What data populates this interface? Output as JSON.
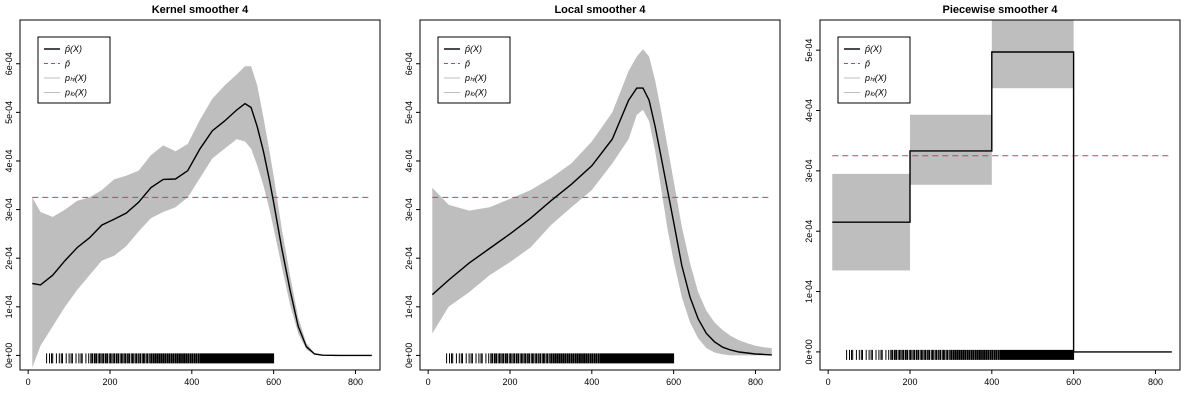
{
  "chart_data": [
    {
      "type": "line",
      "title": "Kernel smoother 4",
      "xlim": [
        -20,
        860
      ],
      "ylim": [
        -3e-05,
        0.00069
      ],
      "xticks": [
        0,
        200,
        400,
        600,
        800
      ],
      "yticks": [
        0,
        0.0001,
        0.0002,
        0.0003,
        0.0004,
        0.0005,
        0.0006
      ],
      "ytick_labels": [
        "0e+00",
        "1e-04",
        "2e-04",
        "3e-04",
        "4e-04",
        "5e-04",
        "6e-04"
      ],
      "legend": [
        "p̂(X)",
        "p̄",
        "pₕᵢ(X)",
        "pₗₒ(X)"
      ],
      "legend_position": "top-left",
      "pbar": 0.000325,
      "x": [
        10,
        30,
        60,
        90,
        120,
        150,
        180,
        210,
        240,
        270,
        300,
        330,
        360,
        390,
        420,
        450,
        480,
        510,
        530,
        545,
        560,
        575,
        590,
        600,
        620,
        640,
        660,
        680,
        700,
        720,
        760,
        800,
        840
      ],
      "fit": [
        0.000148,
        0.000145,
        0.000165,
        0.000195,
        0.000222,
        0.000242,
        0.000268,
        0.00028,
        0.000293,
        0.000315,
        0.000345,
        0.000362,
        0.000363,
        0.00038,
        0.000425,
        0.000462,
        0.000482,
        0.000505,
        0.000518,
        0.00051,
        0.00047,
        0.00042,
        0.00036,
        0.000315,
        0.00022,
        0.000135,
        6e-05,
        1.8e-05,
        3e-06,
        5e-07,
        0,
        0,
        0
      ],
      "upper": [
        0.000325,
        0.000295,
        0.000285,
        0.0003,
        0.000318,
        0.000325,
        0.00034,
        0.000362,
        0.00037,
        0.00038,
        0.000412,
        0.000432,
        0.00042,
        0.000435,
        0.000485,
        0.000528,
        0.000555,
        0.000578,
        0.000595,
        0.000595,
        0.000555,
        0.00049,
        0.00042,
        0.00037,
        0.00026,
        0.000165,
        7.8e-05,
        2.5e-05,
        5e-06,
        1e-06,
        0,
        0,
        0
      ],
      "lower": [
        -2.5e-05,
        2e-05,
        6e-05,
        0.0001,
        0.000135,
        0.000165,
        0.000195,
        0.000205,
        0.000225,
        0.000255,
        0.000282,
        0.000295,
        0.000305,
        0.000325,
        0.000365,
        0.000405,
        0.000425,
        0.000445,
        0.00044,
        0.000425,
        0.00039,
        0.00035,
        0.0003,
        0.000262,
        0.000182,
        0.000105,
        4.5e-05,
        1.2e-05,
        2e-06,
        0,
        0,
        0,
        0
      ],
      "rug_start": 45,
      "rug_end": 600
    },
    {
      "type": "line",
      "title": "Local smoother 4",
      "xlim": [
        -20,
        860
      ],
      "ylim": [
        -3e-05,
        0.00069
      ],
      "xticks": [
        0,
        200,
        400,
        600,
        800
      ],
      "yticks": [
        0,
        0.0001,
        0.0002,
        0.0003,
        0.0004,
        0.0005,
        0.0006
      ],
      "ytick_labels": [
        "0e+00",
        "1e-04",
        "2e-04",
        "3e-04",
        "4e-04",
        "5e-04",
        "6e-04"
      ],
      "legend": [
        "p̂(X)",
        "p̄",
        "pₕᵢ(X)",
        "pₗₒ(X)"
      ],
      "legend_position": "top-left",
      "pbar": 0.000325,
      "x": [
        10,
        50,
        100,
        150,
        200,
        250,
        300,
        350,
        400,
        450,
        490,
        510,
        525,
        540,
        555,
        570,
        585,
        600,
        620,
        640,
        660,
        680,
        700,
        720,
        740,
        760,
        780,
        800,
        820,
        840
      ],
      "fit": [
        0.000125,
        0.000155,
        0.00019,
        0.00022,
        0.00025,
        0.000282,
        0.000318,
        0.000352,
        0.00039,
        0.000445,
        0.000525,
        0.00055,
        0.00055,
        0.000525,
        0.00047,
        0.000405,
        0.00034,
        0.000275,
        0.000185,
        0.00012,
        7.5e-05,
        4.5e-05,
        2.8e-05,
        1.7e-05,
        1.1e-05,
        7e-06,
        5e-06,
        3e-06,
        2e-06,
        1e-06
      ],
      "upper": [
        0.000345,
        0.00031,
        0.000298,
        0.000305,
        0.000322,
        0.00034,
        0.000365,
        0.000395,
        0.00044,
        0.0005,
        0.000585,
        0.000615,
        0.00063,
        0.000615,
        0.000565,
        0.0005,
        0.00043,
        0.00036,
        0.000265,
        0.00019,
        0.00013,
        9.2e-05,
        6.8e-05,
        5.2e-05,
        4e-05,
        3.1e-05,
        2.5e-05,
        2e-05,
        1.7e-05,
        1.5e-05
      ],
      "lower": [
        4.5e-05,
        0.0001,
        0.00013,
        0.000165,
        0.000192,
        0.000222,
        0.000268,
        0.000305,
        0.00034,
        0.000395,
        0.000445,
        0.000495,
        0.000505,
        0.000482,
        0.00042,
        0.00034,
        0.00026,
        0.000195,
        0.00012,
        6.8e-05,
        3.5e-05,
        1.5e-05,
        6e-06,
        2e-06,
        0,
        0,
        0,
        0,
        0,
        0
      ],
      "rug_start": 45,
      "rug_end": 600
    },
    {
      "type": "line",
      "title": "Piecewise smoother 4",
      "xlim": [
        -20,
        860
      ],
      "ylim": [
        -3e-05,
        0.00055
      ],
      "xticks": [
        0,
        200,
        400,
        600,
        800
      ],
      "yticks": [
        0,
        0.0001,
        0.0002,
        0.0003,
        0.0004,
        0.0005
      ],
      "ytick_labels": [
        "0e+00",
        "1e-04",
        "2e-04",
        "3e-04",
        "4e-04",
        "5e-04"
      ],
      "legend": [
        "p̂(X)",
        "p̄",
        "pₕᵢ(X)",
        "pₗₒ(X)"
      ],
      "legend_position": "top-left",
      "pbar": 0.000325,
      "segments": [
        {
          "x0": 10,
          "x1": 200,
          "fit": 0.000215,
          "lower": 0.000135,
          "upper": 0.000295
        },
        {
          "x0": 200,
          "x1": 400,
          "fit": 0.000333,
          "lower": 0.000277,
          "upper": 0.000393
        },
        {
          "x0": 400,
          "x1": 600,
          "fit": 0.000497,
          "lower": 0.000437,
          "upper": 0.00055
        },
        {
          "x0": 600,
          "x1": 840,
          "fit": 0,
          "lower": 0,
          "upper": 0
        }
      ],
      "rug_start": 45,
      "rug_end": 600
    }
  ]
}
